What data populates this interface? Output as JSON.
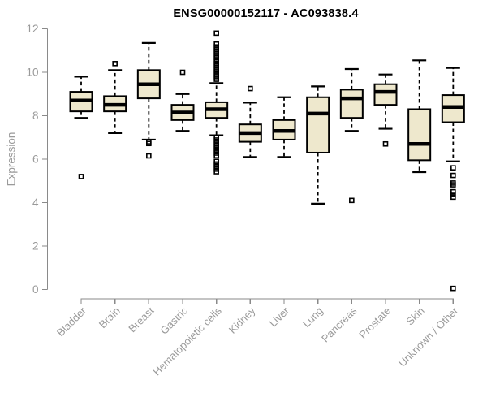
{
  "chart_data": {
    "type": "boxplot",
    "title": "ENSG00000152117 - AC093838.4",
    "ylabel": "Expression",
    "xlabel": "",
    "ylim": [
      0,
      12
    ],
    "yticks": [
      0,
      2,
      4,
      6,
      8,
      10,
      12
    ],
    "grid": false,
    "legend": false,
    "categories": [
      "Bladder",
      "Brain",
      "Breast",
      "Gastric",
      "Hematopoietic cells",
      "Kidney",
      "Liver",
      "Lung",
      "Pancreas",
      "Prostate",
      "Skin",
      "Unknown / Other"
    ],
    "boxes": [
      {
        "category": "Bladder",
        "low": 7.9,
        "q1": 8.2,
        "median": 8.7,
        "q3": 9.1,
        "high": 9.8,
        "outliers": [
          5.2
        ]
      },
      {
        "category": "Brain",
        "low": 7.2,
        "q1": 8.2,
        "median": 8.5,
        "q3": 8.9,
        "high": 10.1,
        "outliers": [
          10.4
        ]
      },
      {
        "category": "Breast",
        "low": 6.9,
        "q1": 8.8,
        "median": 9.45,
        "q3": 10.1,
        "high": 11.35,
        "outliers": [
          6.8,
          6.72,
          6.15
        ]
      },
      {
        "category": "Gastric",
        "low": 7.3,
        "q1": 7.8,
        "median": 8.15,
        "q3": 8.5,
        "high": 9.0,
        "outliers": [
          10.0
        ]
      },
      {
        "category": "Hematopoietic cells",
        "low": 7.1,
        "q1": 7.9,
        "median": 8.3,
        "q3": 8.62,
        "high": 9.5,
        "outliers": [
          11.8,
          11.3,
          11.17,
          11.05,
          10.93,
          10.8,
          10.68,
          10.55,
          10.42,
          10.3,
          10.17,
          10.05,
          9.92,
          9.8,
          9.68,
          7.0,
          6.88,
          6.76,
          6.64,
          6.52,
          6.4,
          6.28,
          6.16,
          5.9,
          5.78,
          5.66,
          5.54,
          5.42
        ]
      },
      {
        "category": "Kidney",
        "low": 6.1,
        "q1": 6.8,
        "median": 7.2,
        "q3": 7.6,
        "high": 8.6,
        "outliers": [
          9.25
        ]
      },
      {
        "category": "Liver",
        "low": 6.1,
        "q1": 6.9,
        "median": 7.3,
        "q3": 7.8,
        "high": 8.85,
        "outliers": []
      },
      {
        "category": "Lung",
        "low": 3.95,
        "q1": 6.3,
        "median": 8.1,
        "q3": 8.85,
        "high": 9.35,
        "outliers": []
      },
      {
        "category": "Pancreas",
        "low": 7.3,
        "q1": 7.9,
        "median": 8.8,
        "q3": 9.2,
        "high": 10.15,
        "outliers": [
          4.1
        ]
      },
      {
        "category": "Prostate",
        "low": 7.4,
        "q1": 8.5,
        "median": 9.1,
        "q3": 9.45,
        "high": 9.9,
        "outliers": [
          6.7
        ]
      },
      {
        "category": "Skin",
        "low": 5.4,
        "q1": 5.95,
        "median": 6.7,
        "q3": 8.3,
        "high": 10.55,
        "outliers": []
      },
      {
        "category": "Unknown / Other",
        "low": 5.9,
        "q1": 7.7,
        "median": 8.4,
        "q3": 8.95,
        "high": 10.2,
        "outliers": [
          5.6,
          5.25,
          4.9,
          4.82,
          4.5,
          4.38,
          4.25,
          0.05
        ]
      }
    ],
    "colors": {
      "box_fill": "#EEE8CD",
      "box_stroke": "#000000",
      "median": "#000000",
      "whisker": "#000000",
      "outlier": "#000000",
      "axis_line": "#8a8a8a",
      "axis_text": "#9a9a9a",
      "title": "#000000",
      "background": "#ffffff"
    }
  }
}
